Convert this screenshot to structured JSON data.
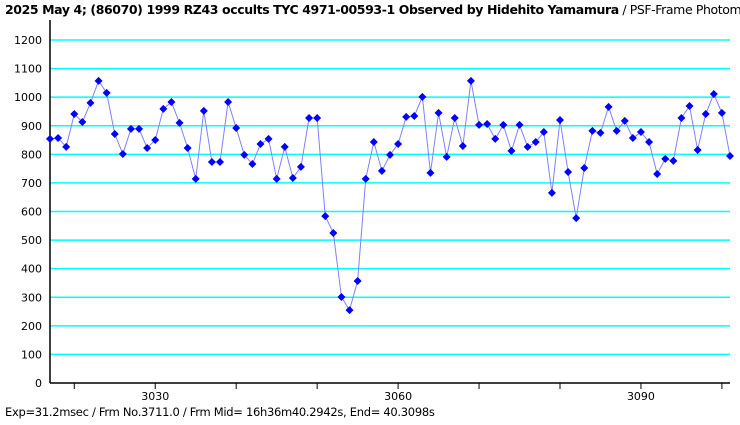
{
  "header": {
    "title_bold": "2025 May 4; (86070) 1999 RZ43 occults TYC 4971-00593-1 Observed by Hidehito Yamamura",
    "title_rest": " / PSF-Frame Photometry /"
  },
  "footer": {
    "info": "Exp=31.2msec / Frm No.3711.0 / Frm Mid= 16h36m40.2942s,  End= 40.3098s"
  },
  "colors": {
    "grid": "#00ffff",
    "line": "#8080ff",
    "marker": "#0000ff"
  },
  "chart_data": {
    "type": "line",
    "title": "2025 May 4; (86070) 1999 RZ43 occults TYC 4971-00593-1 Observed by Hidehito Yamamura / PSF-Frame Photometry /",
    "xlabel": "",
    "ylabel": "",
    "xlim": [
      3017,
      3101
    ],
    "ylim": [
      0,
      1250
    ],
    "grid": true,
    "yticks": [
      0,
      100,
      200,
      300,
      400,
      500,
      600,
      700,
      800,
      900,
      1000,
      1100,
      1200
    ],
    "xticks_minor": [
      3020,
      3030,
      3040,
      3050,
      3060,
      3070,
      3080,
      3090,
      3100
    ],
    "xtick_labels": [
      3030,
      3060,
      3090
    ],
    "x_start": 3017,
    "values": [
      854,
      857,
      826,
      941,
      913,
      980,
      1057,
      1015,
      871,
      801,
      889,
      889,
      822,
      850,
      959,
      983,
      910,
      822,
      714,
      952,
      773,
      773,
      983,
      892,
      798,
      766,
      836,
      854,
      714,
      826,
      717,
      756,
      927,
      927,
      584,
      525,
      301,
      255,
      357,
      714,
      843,
      742,
      798,
      836,
      931,
      934,
      1001,
      735,
      945,
      791,
      927,
      829,
      1057,
      903,
      906,
      854,
      903,
      812,
      903,
      826,
      843,
      878,
      665,
      920,
      738,
      577,
      752,
      882,
      875,
      966,
      882,
      917,
      857,
      878,
      843,
      731,
      784,
      777,
      927,
      969,
      815,
      941,
      1011,
      945,
      794
    ]
  }
}
